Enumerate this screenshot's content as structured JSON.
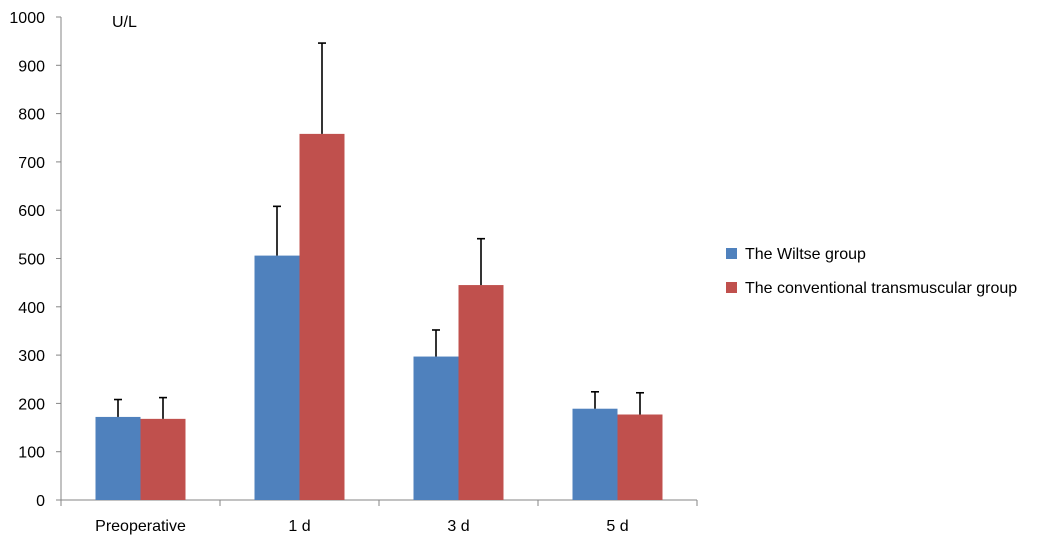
{
  "chart_data": {
    "type": "bar",
    "categories": [
      "Preoperative",
      "1 d",
      "3 d",
      "5 d"
    ],
    "ylabel": "U/L",
    "ylim": [
      0,
      1000
    ],
    "yticks": [
      0,
      100,
      200,
      300,
      400,
      500,
      600,
      700,
      800,
      900,
      1000
    ],
    "legend_position": "right",
    "grid": false,
    "error_bars": "upper",
    "series": [
      {
        "name": "The Wiltse group",
        "color": "#4f81bd",
        "values": [
          172,
          506,
          297,
          189
        ],
        "errors": [
          36,
          102,
          55,
          35
        ]
      },
      {
        "name": "The conventional transmuscular group",
        "color": "#c0504d",
        "values": [
          168,
          758,
          445,
          177
        ],
        "errors": [
          44,
          188,
          96,
          45
        ]
      }
    ]
  }
}
